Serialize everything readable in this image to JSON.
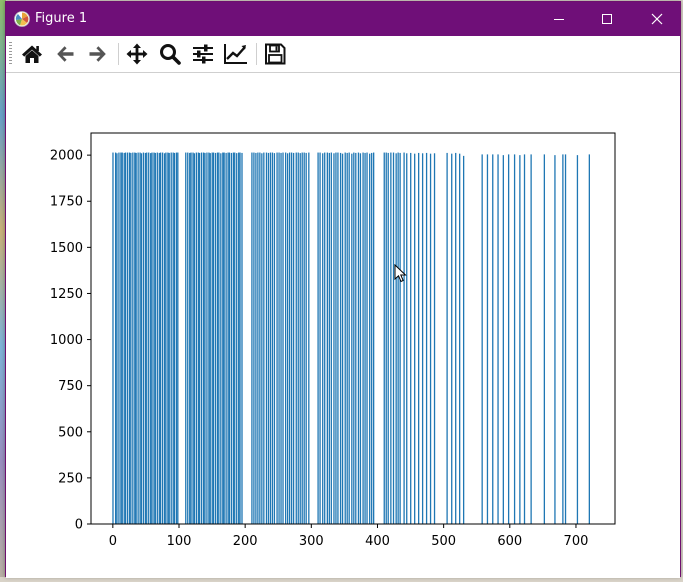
{
  "window": {
    "title": "Figure 1"
  },
  "toolbar": {
    "icons": [
      "home-icon",
      "back-arrow-icon",
      "forward-arrow-icon",
      "pan-icon",
      "zoom-icon",
      "configure-subplots-icon",
      "edit-axis-icon",
      "save-icon"
    ]
  },
  "chart_data": {
    "type": "bar",
    "xlim": [
      -33,
      759
    ],
    "ylim": [
      0,
      2120
    ],
    "xticks": [
      0,
      100,
      200,
      300,
      400,
      500,
      600,
      700
    ],
    "yticks": [
      0,
      250,
      500,
      750,
      1000,
      1250,
      1500,
      1750,
      2000
    ],
    "bar_width": 1,
    "color": "#1f77b4",
    "bars": [
      [
        0,
        2014
      ],
      [
        4,
        2014
      ],
      [
        6,
        2010
      ],
      [
        9,
        2014
      ],
      [
        12,
        2014
      ],
      [
        14,
        2014
      ],
      [
        17,
        2012
      ],
      [
        19,
        2014
      ],
      [
        22,
        2014
      ],
      [
        25,
        2014
      ],
      [
        27,
        2012
      ],
      [
        30,
        2014
      ],
      [
        33,
        2014
      ],
      [
        35,
        2012
      ],
      [
        38,
        2014
      ],
      [
        41,
        2014
      ],
      [
        43,
        2010
      ],
      [
        46,
        2014
      ],
      [
        49,
        2012
      ],
      [
        51,
        2014
      ],
      [
        54,
        2014
      ],
      [
        57,
        2011
      ],
      [
        59,
        2014
      ],
      [
        62,
        2014
      ],
      [
        64,
        2012
      ],
      [
        67,
        2014
      ],
      [
        70,
        2012
      ],
      [
        72,
        2014
      ],
      [
        75,
        2014
      ],
      [
        78,
        2010
      ],
      [
        80,
        2014
      ],
      [
        83,
        2014
      ],
      [
        85,
        2012
      ],
      [
        88,
        2014
      ],
      [
        91,
        2014
      ],
      [
        93,
        2012
      ],
      [
        96,
        2014
      ],
      [
        98,
        2014
      ],
      [
        110,
        2014
      ],
      [
        113,
        2014
      ],
      [
        116,
        2012
      ],
      [
        118,
        2014
      ],
      [
        121,
        2014
      ],
      [
        123,
        2010
      ],
      [
        126,
        2014
      ],
      [
        129,
        2014
      ],
      [
        131,
        2012
      ],
      [
        134,
        2014
      ],
      [
        137,
        2014
      ],
      [
        139,
        2012
      ],
      [
        142,
        2014
      ],
      [
        145,
        2014
      ],
      [
        147,
        2011
      ],
      [
        150,
        2014
      ],
      [
        152,
        2014
      ],
      [
        155,
        2012
      ],
      [
        158,
        2014
      ],
      [
        160,
        2014
      ],
      [
        163,
        2010
      ],
      [
        166,
        2014
      ],
      [
        168,
        2014
      ],
      [
        171,
        2012
      ],
      [
        174,
        2014
      ],
      [
        176,
        2014
      ],
      [
        179,
        2012
      ],
      [
        182,
        2014
      ],
      [
        184,
        2014
      ],
      [
        187,
        2011
      ],
      [
        190,
        2014
      ],
      [
        192,
        2014
      ],
      [
        195,
        2012
      ],
      [
        210,
        2014
      ],
      [
        213,
        2014
      ],
      [
        216,
        2012
      ],
      [
        219,
        2014
      ],
      [
        222,
        2014
      ],
      [
        225,
        2010
      ],
      [
        228,
        2014
      ],
      [
        232,
        2014
      ],
      [
        235,
        2012
      ],
      [
        238,
        2014
      ],
      [
        241,
        2014
      ],
      [
        244,
        2011
      ],
      [
        248,
        2014
      ],
      [
        251,
        2014
      ],
      [
        254,
        2012
      ],
      [
        257,
        2014
      ],
      [
        261,
        2014
      ],
      [
        264,
        2010
      ],
      [
        267,
        2014
      ],
      [
        270,
        2014
      ],
      [
        273,
        2012
      ],
      [
        277,
        2014
      ],
      [
        280,
        2014
      ],
      [
        283,
        2011
      ],
      [
        286,
        2014
      ],
      [
        289,
        2014
      ],
      [
        292,
        2012
      ],
      [
        296,
        2014
      ],
      [
        310,
        2014
      ],
      [
        313,
        2014
      ],
      [
        317,
        2010
      ],
      [
        320,
        2014
      ],
      [
        324,
        2014
      ],
      [
        327,
        2012
      ],
      [
        330,
        2014
      ],
      [
        334,
        2010
      ],
      [
        337,
        2014
      ],
      [
        340,
        2014
      ],
      [
        344,
        2012
      ],
      [
        347,
        2008
      ],
      [
        351,
        2014
      ],
      [
        354,
        2012
      ],
      [
        357,
        2014
      ],
      [
        361,
        2008
      ],
      [
        364,
        2014
      ],
      [
        367,
        2012
      ],
      [
        371,
        2014
      ],
      [
        374,
        2010
      ],
      [
        378,
        2014
      ],
      [
        381,
        2012
      ],
      [
        384,
        2014
      ],
      [
        388,
        2008
      ],
      [
        391,
        2012
      ],
      [
        394,
        2014
      ],
      [
        410,
        2014
      ],
      [
        413,
        2014
      ],
      [
        416,
        2012
      ],
      [
        420,
        2014
      ],
      [
        424,
        2014
      ],
      [
        428,
        2010
      ],
      [
        431,
        2014
      ],
      [
        434,
        2012
      ],
      [
        440,
        2014
      ],
      [
        444,
        2010
      ],
      [
        450,
        2012
      ],
      [
        456,
        2008
      ],
      [
        462,
        2012
      ],
      [
        468,
        2010
      ],
      [
        474,
        2012
      ],
      [
        480,
        2008
      ],
      [
        486,
        2010
      ],
      [
        505,
        2012
      ],
      [
        512,
        2008
      ],
      [
        518,
        2012
      ],
      [
        524,
        2008
      ],
      [
        530,
        1996
      ],
      [
        558,
        2004
      ],
      [
        566,
        2004
      ],
      [
        574,
        2004
      ],
      [
        582,
        2004
      ],
      [
        590,
        2000
      ],
      [
        598,
        2004
      ],
      [
        607,
        2004
      ],
      [
        615,
        2000
      ],
      [
        622,
        2004
      ],
      [
        632,
        2004
      ],
      [
        652,
        2004
      ],
      [
        668,
        2000
      ],
      [
        680,
        2004
      ],
      [
        684,
        2004
      ],
      [
        702,
        2000
      ],
      [
        720,
        2004
      ]
    ]
  }
}
